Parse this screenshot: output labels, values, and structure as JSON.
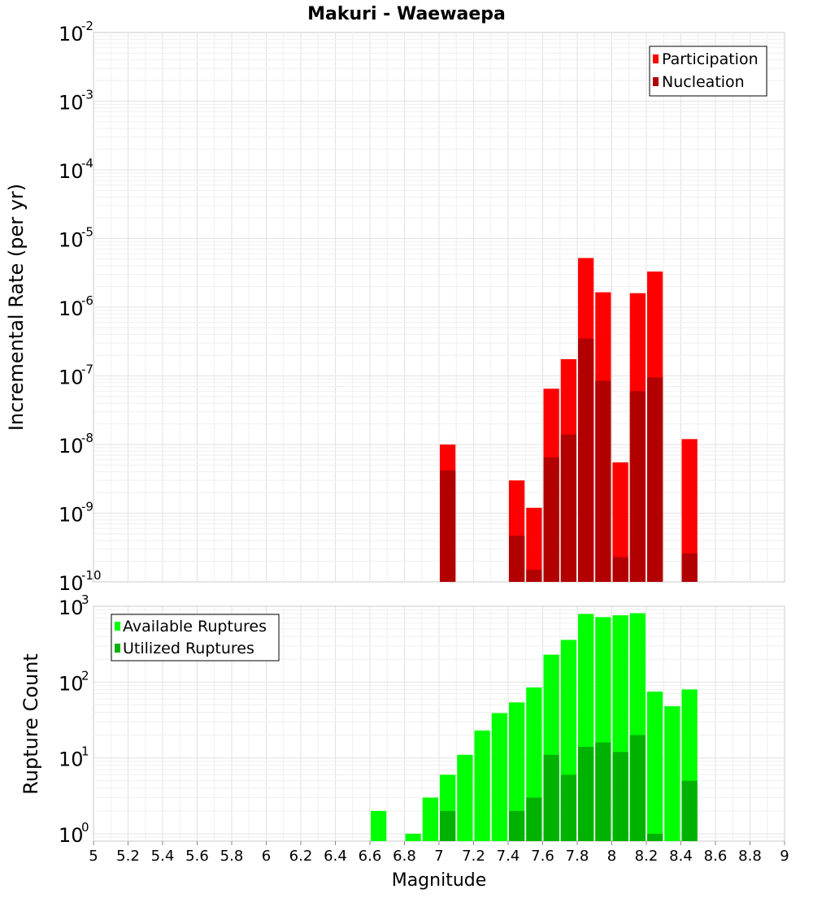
{
  "chart_data": [
    {
      "type": "bar",
      "title": "Makuri - Waewaepa",
      "xlabel": "",
      "ylabel": "Incremental Rate (per yr)",
      "yscale": "log",
      "ylim": [
        1e-10,
        0.01
      ],
      "xlim": [
        5,
        9
      ],
      "bin_width": 0.1,
      "grid": true,
      "legend_position": "top-right",
      "ytick_labels": [
        {
          "base": "10",
          "exp": "-10"
        },
        {
          "base": "10",
          "exp": "-9"
        },
        {
          "base": "10",
          "exp": "-8"
        },
        {
          "base": "10",
          "exp": "-7"
        },
        {
          "base": "10",
          "exp": "-6"
        },
        {
          "base": "10",
          "exp": "-5"
        },
        {
          "base": "10",
          "exp": "-4"
        },
        {
          "base": "10",
          "exp": "-3"
        },
        {
          "base": "10",
          "exp": "-2"
        }
      ],
      "x": [
        7.05,
        7.45,
        7.55,
        7.65,
        7.75,
        7.85,
        7.95,
        8.05,
        8.15,
        8.25,
        8.45
      ],
      "series": [
        {
          "name": "Participation",
          "color": "#ff0000",
          "values": [
            1e-08,
            3e-09,
            1.2e-09,
            6.5e-08,
            1.75e-07,
            5.2e-06,
            1.65e-06,
            5.5e-09,
            1.6e-06,
            3.3e-06,
            1.2e-08
          ]
        },
        {
          "name": "Nucleation",
          "color": "#b20000",
          "values": [
            4.2e-09,
            4.7e-10,
            1.5e-10,
            6.5e-09,
            1.4e-08,
            3.5e-07,
            8.5e-08,
            2.3e-10,
            6e-08,
            9.5e-08,
            2.6e-10
          ]
        }
      ]
    },
    {
      "type": "bar",
      "title": "",
      "xlabel": "Magnitude",
      "ylabel": "Rupture Count",
      "yscale": "log",
      "ylim": [
        0.8,
        1000
      ],
      "xlim": [
        5,
        9
      ],
      "bin_width": 0.1,
      "grid": true,
      "legend_position": "top-left",
      "ytick_labels": [
        {
          "base": "10",
          "exp": "0"
        },
        {
          "base": "10",
          "exp": "1"
        },
        {
          "base": "10",
          "exp": "2"
        },
        {
          "base": "10",
          "exp": "3"
        }
      ],
      "xtick_labels": [
        "5",
        "5.2",
        "5.4",
        "5.6",
        "5.8",
        "6",
        "6.2",
        "6.4",
        "6.6",
        "6.8",
        "7",
        "7.2",
        "7.4",
        "7.6",
        "7.8",
        "8",
        "8.2",
        "8.4",
        "8.6",
        "8.8",
        "9"
      ],
      "x": [
        6.65,
        6.85,
        6.95,
        7.05,
        7.15,
        7.25,
        7.35,
        7.45,
        7.55,
        7.65,
        7.75,
        7.85,
        7.95,
        8.05,
        8.15,
        8.25,
        8.35,
        8.45
      ],
      "series": [
        {
          "name": "Available Ruptures",
          "color": "#00ff00",
          "values": [
            2,
            1,
            3,
            6,
            11,
            23,
            39,
            54,
            85,
            230,
            360,
            790,
            720,
            760,
            810,
            75,
            48,
            80
          ]
        },
        {
          "name": "Utilized Ruptures",
          "color": "#00b200",
          "values": [
            null,
            null,
            null,
            2,
            null,
            null,
            null,
            2,
            3,
            11,
            6,
            14,
            16,
            12,
            20,
            1,
            null,
            5
          ]
        }
      ]
    }
  ]
}
